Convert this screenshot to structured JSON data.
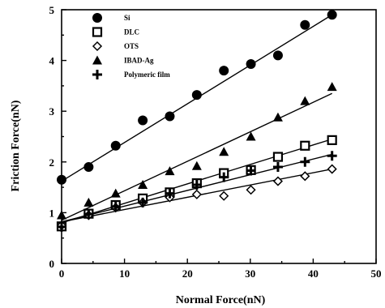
{
  "chart_data": {
    "type": "scatter",
    "xlabel": "Normal Force(nN)",
    "ylabel": "Friction Force(nN)",
    "xlim": [
      0,
      50
    ],
    "ylim": [
      0,
      5
    ],
    "xticks": [
      0,
      10,
      20,
      30,
      40,
      50
    ],
    "yticks": [
      0,
      1,
      2,
      3,
      4,
      5
    ],
    "legend_position": "top-left",
    "grid": false,
    "series": [
      {
        "name": "Si",
        "marker": "filled-circle",
        "x": [
          0,
          4.3,
          8.6,
          12.9,
          17.2,
          21.5,
          25.8,
          30.1,
          34.4,
          38.7,
          43
        ],
        "y": [
          1.65,
          1.9,
          2.32,
          2.82,
          2.9,
          3.32,
          3.8,
          3.93,
          4.1,
          4.7,
          4.9
        ],
        "fit": [
          1.62,
          4.9
        ]
      },
      {
        "name": "DLC",
        "marker": "open-square",
        "x": [
          0,
          4.3,
          8.6,
          12.9,
          17.2,
          21.5,
          25.8,
          30.1,
          34.4,
          38.7,
          43
        ],
        "y": [
          0.73,
          0.98,
          1.15,
          1.28,
          1.4,
          1.58,
          1.78,
          1.84,
          2.1,
          2.32,
          2.43
        ],
        "fit": [
          0.8,
          2.45
        ]
      },
      {
        "name": "OTS",
        "marker": "open-diamond",
        "x": [
          0,
          4.3,
          8.6,
          12.9,
          17.2,
          21.5,
          25.8,
          30.1,
          34.4,
          38.7,
          43
        ],
        "y": [
          0.75,
          0.95,
          1.1,
          1.2,
          1.3,
          1.36,
          1.33,
          1.45,
          1.62,
          1.72,
          1.86
        ],
        "fit": [
          0.82,
          1.86
        ]
      },
      {
        "name": "IBAD-Ag",
        "marker": "filled-triangle",
        "x": [
          0,
          4.3,
          8.6,
          12.9,
          17.2,
          21.5,
          25.8,
          30.1,
          34.4,
          38.7,
          43
        ],
        "y": [
          0.95,
          1.2,
          1.38,
          1.55,
          1.82,
          1.92,
          2.2,
          2.5,
          2.88,
          3.2,
          3.48
        ],
        "fit": [
          0.85,
          3.35
        ]
      },
      {
        "name": "Polymeric film",
        "marker": "plus",
        "x": [
          0,
          4.3,
          8.6,
          12.9,
          17.2,
          21.5,
          25.8,
          30.1,
          34.4,
          38.7,
          43
        ],
        "y": [
          0.72,
          0.97,
          1.12,
          1.2,
          1.38,
          1.55,
          1.7,
          1.83,
          1.9,
          2.0,
          2.12
        ],
        "fit": [
          0.82,
          2.15
        ]
      }
    ]
  },
  "legend": {
    "items": [
      {
        "label": "Si",
        "marker": "filled-circle"
      },
      {
        "label": "DLC",
        "marker": "open-square"
      },
      {
        "label": "OTS",
        "marker": "open-diamond"
      },
      {
        "label": "IBAD-Ag",
        "marker": "filled-triangle"
      },
      {
        "label": "Polymeric film",
        "marker": "plus"
      }
    ]
  }
}
